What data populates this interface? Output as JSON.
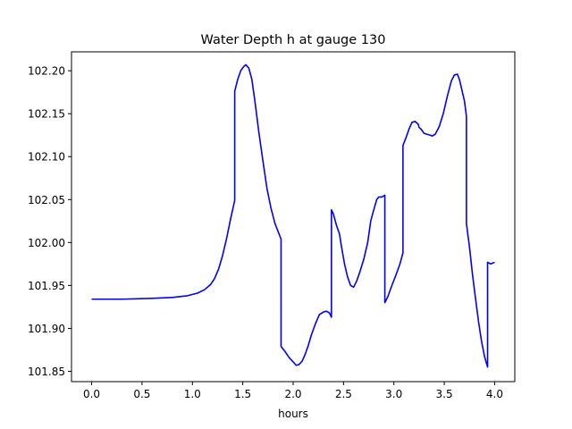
{
  "chart_data": {
    "type": "line",
    "title": "Water Depth h at gauge 130",
    "xlabel": "hours",
    "ylabel": "",
    "xlim": [
      -0.2,
      4.2
    ],
    "ylim": [
      101.838,
      102.222
    ],
    "xticks": [
      0.0,
      0.5,
      1.0,
      1.5,
      2.0,
      2.5,
      3.0,
      3.5,
      4.0
    ],
    "xtick_labels": [
      "0.0",
      "0.5",
      "1.0",
      "1.5",
      "2.0",
      "2.5",
      "3.0",
      "3.5",
      "4.0"
    ],
    "yticks": [
      101.85,
      101.9,
      101.95,
      102.0,
      102.05,
      102.1,
      102.15,
      102.2
    ],
    "ytick_labels": [
      "101.85",
      "101.90",
      "101.95",
      "102.00",
      "102.05",
      "102.10",
      "102.15",
      "102.20"
    ],
    "grid": false,
    "line_color": "#0000ff",
    "series": [
      {
        "x": [
          0.0,
          0.3,
          0.6,
          0.8,
          0.95,
          1.05,
          1.12,
          1.18,
          1.22,
          1.26,
          1.3,
          1.34,
          1.38,
          1.42,
          1.42,
          1.45,
          1.48,
          1.51,
          1.53,
          1.56,
          1.59,
          1.62,
          1.66,
          1.7,
          1.74,
          1.78,
          1.82,
          1.85,
          1.88,
          1.88,
          1.92,
          1.96,
          2.0,
          2.03,
          2.06,
          2.09,
          2.12,
          2.15,
          2.18,
          2.22,
          2.26,
          2.3,
          2.33,
          2.36,
          2.38,
          2.38,
          2.4,
          2.43,
          2.46,
          2.48,
          2.51,
          2.54,
          2.57,
          2.6,
          2.63,
          2.66,
          2.7,
          2.74,
          2.77,
          2.8,
          2.83,
          2.85,
          2.88,
          2.91,
          2.91,
          2.94,
          2.98,
          3.02,
          3.06,
          3.09,
          3.09,
          3.12,
          3.15,
          3.18,
          3.21,
          3.24,
          3.25,
          3.27,
          3.3,
          3.33,
          3.36,
          3.38,
          3.41,
          3.45,
          3.49,
          3.53,
          3.57,
          3.6,
          3.63,
          3.65,
          3.67,
          3.7,
          3.72,
          3.72,
          3.75,
          3.78,
          3.81,
          3.84,
          3.87,
          3.9,
          3.93,
          3.93,
          3.96,
          3.98,
          4.0
        ],
        "y": [
          101.934,
          101.934,
          101.935,
          101.936,
          101.938,
          101.941,
          101.945,
          101.951,
          101.958,
          101.969,
          101.985,
          102.005,
          102.028,
          102.049,
          102.176,
          102.19,
          102.2,
          102.205,
          102.207,
          102.203,
          102.19,
          102.165,
          102.128,
          102.095,
          102.063,
          102.04,
          102.022,
          102.013,
          102.004,
          101.879,
          101.873,
          101.866,
          101.861,
          101.857,
          101.858,
          101.862,
          101.87,
          101.88,
          101.892,
          101.905,
          101.916,
          101.919,
          101.92,
          101.918,
          101.913,
          102.038,
          102.033,
          102.02,
          102.01,
          101.995,
          101.975,
          101.96,
          101.95,
          101.948,
          101.955,
          101.965,
          101.98,
          102.0,
          102.025,
          102.038,
          102.05,
          102.053,
          102.053,
          102.055,
          101.93,
          101.937,
          101.95,
          101.962,
          101.975,
          101.988,
          102.113,
          102.122,
          102.132,
          102.14,
          102.141,
          102.138,
          102.134,
          102.132,
          102.127,
          102.126,
          102.125,
          102.124,
          102.126,
          102.135,
          102.15,
          102.17,
          102.188,
          102.195,
          102.196,
          102.19,
          102.18,
          102.165,
          102.147,
          102.022,
          101.995,
          101.963,
          101.935,
          101.908,
          101.885,
          101.867,
          101.855,
          101.977,
          101.975,
          101.976,
          101.977
        ]
      }
    ]
  }
}
